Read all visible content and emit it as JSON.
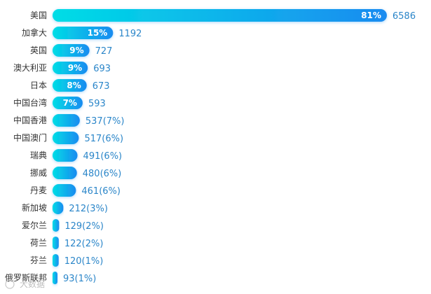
{
  "chart_data": {
    "type": "bar",
    "orientation": "horizontal",
    "categories": [
      "美国",
      "加拿大",
      "英国",
      "澳大利亚",
      "日本",
      "中国台湾",
      "中国香港",
      "中国澳门",
      "瑞典",
      "挪威",
      "丹麦",
      "新加坡",
      "爱尔兰",
      "荷兰",
      "芬兰",
      "俄罗斯联邦"
    ],
    "values": [
      6586,
      1192,
      727,
      693,
      673,
      593,
      537,
      517,
      491,
      480,
      461,
      212,
      129,
      122,
      120,
      93
    ],
    "percent_labels": [
      "81%",
      "15%",
      "9%",
      "9%",
      "8%",
      "7%",
      "",
      "",
      "",
      "",
      "",
      "",
      "",
      "",
      "",
      ""
    ],
    "value_labels": [
      "6586",
      "1192",
      "727",
      "693",
      "673",
      "593",
      "537(7%)",
      "517(6%)",
      "491(6%)",
      "480(6%)",
      "461(6%)",
      "212(3%)",
      "129(2%)",
      "122(2%)",
      "120(1%)",
      "93(1%)"
    ],
    "title": "",
    "xlabel": "",
    "ylabel": "",
    "xlim": [
      0,
      6586
    ],
    "grid": false,
    "legend": "none",
    "colors": {
      "bar_start": "#00dde6",
      "bar_end": "#1a8bf0",
      "value_text": "#2b86c9",
      "category_text": "#333333"
    }
  },
  "watermark": "大数据"
}
